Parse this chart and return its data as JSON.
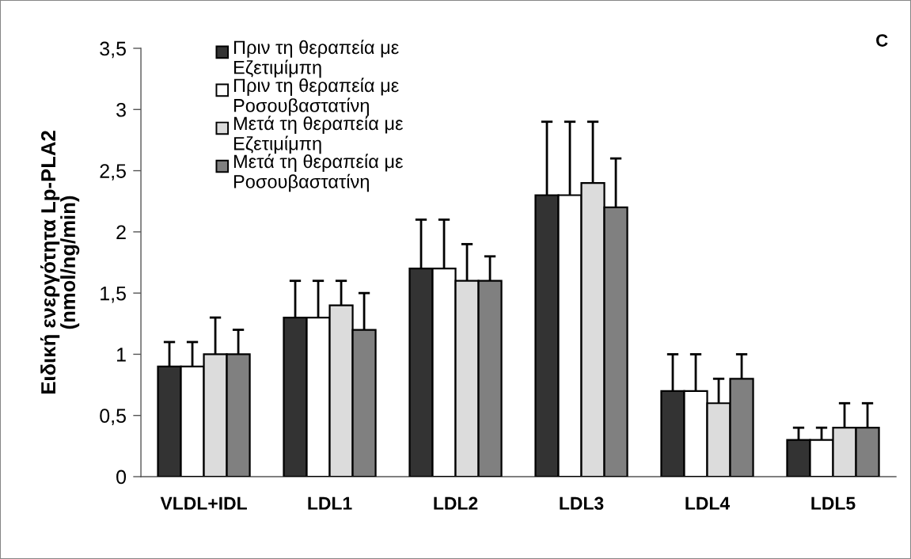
{
  "chart_data": {
    "type": "bar",
    "categories": [
      "VLDL+IDL",
      "LDL1",
      "LDL2",
      "LDL3",
      "LDL4",
      "LDL5"
    ],
    "series": [
      {
        "name": "Πριν τη θεραπεία με\nΕζετιμίμπη",
        "color": "#333333",
        "values": [
          0.9,
          1.3,
          1.7,
          2.3,
          0.7,
          0.3
        ],
        "errors": [
          [
            0.9,
            1.1
          ],
          [
            1.3,
            1.6
          ],
          [
            1.7,
            2.1
          ],
          [
            2.3,
            2.9
          ],
          [
            0.7,
            1.0
          ],
          [
            0.3,
            0.4
          ]
        ]
      },
      {
        "name": "Πριν τη θεραπεία με\nΡοσουβαστατίνη",
        "color": "#ffffff",
        "values": [
          0.9,
          1.3,
          1.7,
          2.3,
          0.7,
          0.3
        ],
        "errors": [
          [
            0.9,
            1.1
          ],
          [
            1.3,
            1.6
          ],
          [
            1.7,
            2.1
          ],
          [
            2.3,
            2.9
          ],
          [
            0.7,
            1.0
          ],
          [
            0.3,
            0.4
          ]
        ]
      },
      {
        "name": "Μετά τη θεραπεία με\nΕζετιμίμπη",
        "color": "#dcdcdc",
        "values": [
          1.0,
          1.4,
          1.6,
          2.4,
          0.6,
          0.4
        ],
        "errors": [
          [
            1.0,
            1.3
          ],
          [
            1.4,
            1.6
          ],
          [
            1.6,
            1.9
          ],
          [
            2.4,
            2.9
          ],
          [
            0.6,
            0.8
          ],
          [
            0.4,
            0.6
          ]
        ]
      },
      {
        "name": "Μετά τη θεραπεία με\nΡοσουβαστατίνη",
        "color": "#808080",
        "values": [
          1.0,
          1.2,
          1.6,
          2.2,
          0.8,
          0.4
        ],
        "errors": [
          [
            1.0,
            1.2
          ],
          [
            1.2,
            1.5
          ],
          [
            1.6,
            1.8
          ],
          [
            2.2,
            2.6
          ],
          [
            0.8,
            1.0
          ],
          [
            0.4,
            0.6
          ]
        ]
      }
    ],
    "ylabel": "Ειδική ενεργότητα Lp-PLA2\n(nmol/ng/min)",
    "ylim": [
      0,
      3.5
    ],
    "yticks": [
      0,
      {
        "value": 0.5,
        "label": "0,5"
      },
      1,
      {
        "value": 1.5,
        "label": "1,5"
      },
      2,
      {
        "value": 2.5,
        "label": "2,5"
      },
      3,
      {
        "value": 3.5,
        "label": "3,5"
      }
    ],
    "legend": "top left",
    "annotations": [
      "C"
    ]
  }
}
